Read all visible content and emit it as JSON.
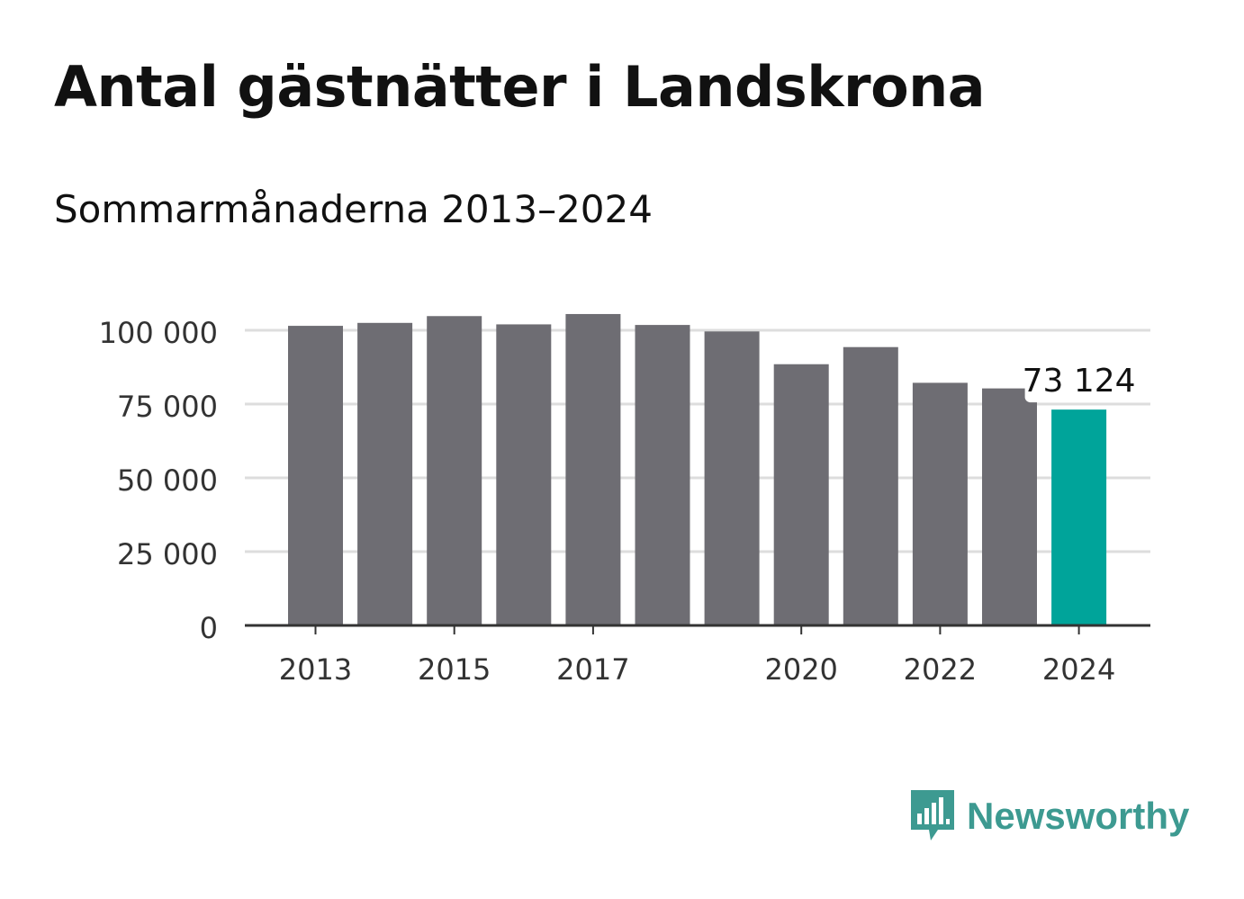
{
  "header": {
    "title": "Antal gästnätter i Landskrona",
    "subtitle": "Sommarmånaderna 2013–2024"
  },
  "brand": {
    "name": "Newsworthy",
    "logo_icon": "newsworthy-logo-icon",
    "color": "#3d9a91"
  },
  "chart_data": {
    "type": "bar",
    "categories": [
      "2013",
      "2014",
      "2015",
      "2016",
      "2017",
      "2018",
      "2019",
      "2020",
      "2021",
      "2022",
      "2023",
      "2024"
    ],
    "values": [
      101500,
      102500,
      104800,
      102000,
      105500,
      101800,
      99600,
      88500,
      94300,
      82200,
      80300,
      73124
    ],
    "title": "Antal gästnätter i Landskrona",
    "subtitle": "Sommarmånaderna 2013–2024",
    "xlabel": "",
    "ylabel": "",
    "ylim": [
      0,
      110000
    ],
    "yticks": [
      0,
      25000,
      50000,
      75000,
      100000
    ],
    "ytick_labels": [
      "0",
      "25 000",
      "50 000",
      "75 000",
      "100 000"
    ],
    "xtick_labels": [
      "2013",
      "2015",
      "2017",
      "2020",
      "2022",
      "2024"
    ],
    "highlight_index": 11,
    "annotation": {
      "index": 11,
      "label": "73 124"
    },
    "colors": {
      "bar": "#6e6d73",
      "highlight": "#00a49a",
      "grid": "#dddddd",
      "axis": "#333333"
    },
    "grid": true,
    "legend": "none"
  }
}
